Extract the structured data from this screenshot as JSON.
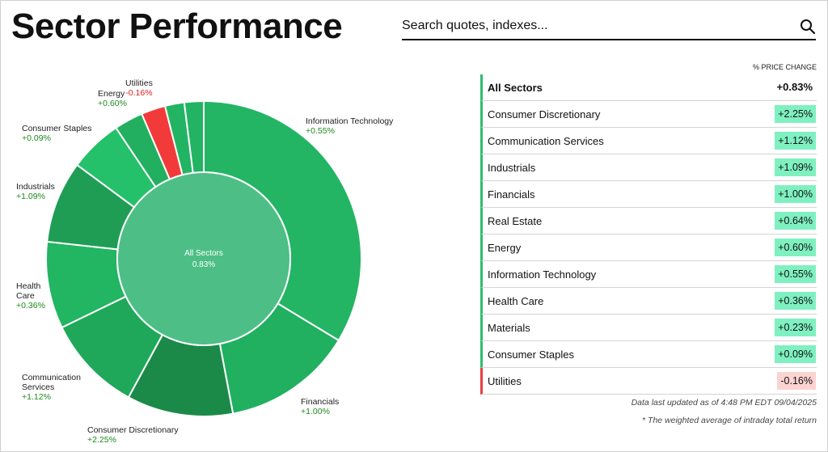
{
  "page": {
    "title": "Sector Performance"
  },
  "search": {
    "placeholder": "Search quotes, indexes..."
  },
  "table": {
    "column_header": "% PRICE CHANGE",
    "total": {
      "name": "All Sectors",
      "value": "+0.83%"
    },
    "rows": [
      {
        "name": "Consumer Discretionary",
        "value": "+2.25%"
      },
      {
        "name": "Communication Services",
        "value": "+1.12%"
      },
      {
        "name": "Industrials",
        "value": "+1.09%"
      },
      {
        "name": "Financials",
        "value": "+1.00%"
      },
      {
        "name": "Real Estate",
        "value": "+0.64%"
      },
      {
        "name": "Energy",
        "value": "+0.60%"
      },
      {
        "name": "Information Technology",
        "value": "+0.55%"
      },
      {
        "name": "Health Care",
        "value": "+0.36%"
      },
      {
        "name": "Materials",
        "value": "+0.23%"
      },
      {
        "name": "Consumer Staples",
        "value": "+0.09%"
      },
      {
        "name": "Utilities",
        "value": "-0.16%"
      }
    ]
  },
  "footer": {
    "updated": "Data last updated as of 4:48 PM EDT 09/04/2025",
    "note": "* The weighted average of intraday total return"
  },
  "donut": {
    "center_name": "All Sectors",
    "center_value": "0.83%",
    "labels": {
      "utilities": {
        "name": "Utilities",
        "value": "-0.16%"
      },
      "energy": {
        "name": "Energy",
        "value": "+0.60%"
      },
      "consumer_staples": {
        "name": "Consumer Staples",
        "value": "+0.09%"
      },
      "industrials": {
        "name": "Industrials",
        "value": "+1.09%"
      },
      "health_care": {
        "name": "Health Care",
        "value": "+0.36%"
      },
      "communication_services": {
        "name": "Communication Services",
        "value": "+1.12%"
      },
      "consumer_discretionary": {
        "name": "Consumer Discretionary",
        "value": "+2.25%"
      },
      "financials": {
        "name": "Financials",
        "value": "+1.00%"
      },
      "information_technology": {
        "name": "Information Technology",
        "value": "+0.55%"
      }
    },
    "segments": [
      {
        "id": "information_technology",
        "weight": 34,
        "color": "#23b564"
      },
      {
        "id": "financials",
        "weight": 13.5,
        "color": "#20b060"
      },
      {
        "id": "consumer_discretionary",
        "weight": 11,
        "color": "#1b8a48"
      },
      {
        "id": "communication_services",
        "weight": 10,
        "color": "#20a85a"
      },
      {
        "id": "health_care",
        "weight": 9,
        "color": "#22b562"
      },
      {
        "id": "industrials",
        "weight": 8.5,
        "color": "#1f9d55"
      },
      {
        "id": "consumer_staples",
        "weight": 5.5,
        "color": "#25c06a"
      },
      {
        "id": "energy",
        "weight": 3,
        "color": "#22b060"
      },
      {
        "id": "utilities",
        "weight": 2.5,
        "color": "#f23a3a"
      },
      {
        "id": "real_estate",
        "weight": 2,
        "color": "#22b462"
      },
      {
        "id": "materials",
        "weight": 2,
        "color": "#22b462"
      }
    ],
    "center_color": "#4dbf86"
  }
}
